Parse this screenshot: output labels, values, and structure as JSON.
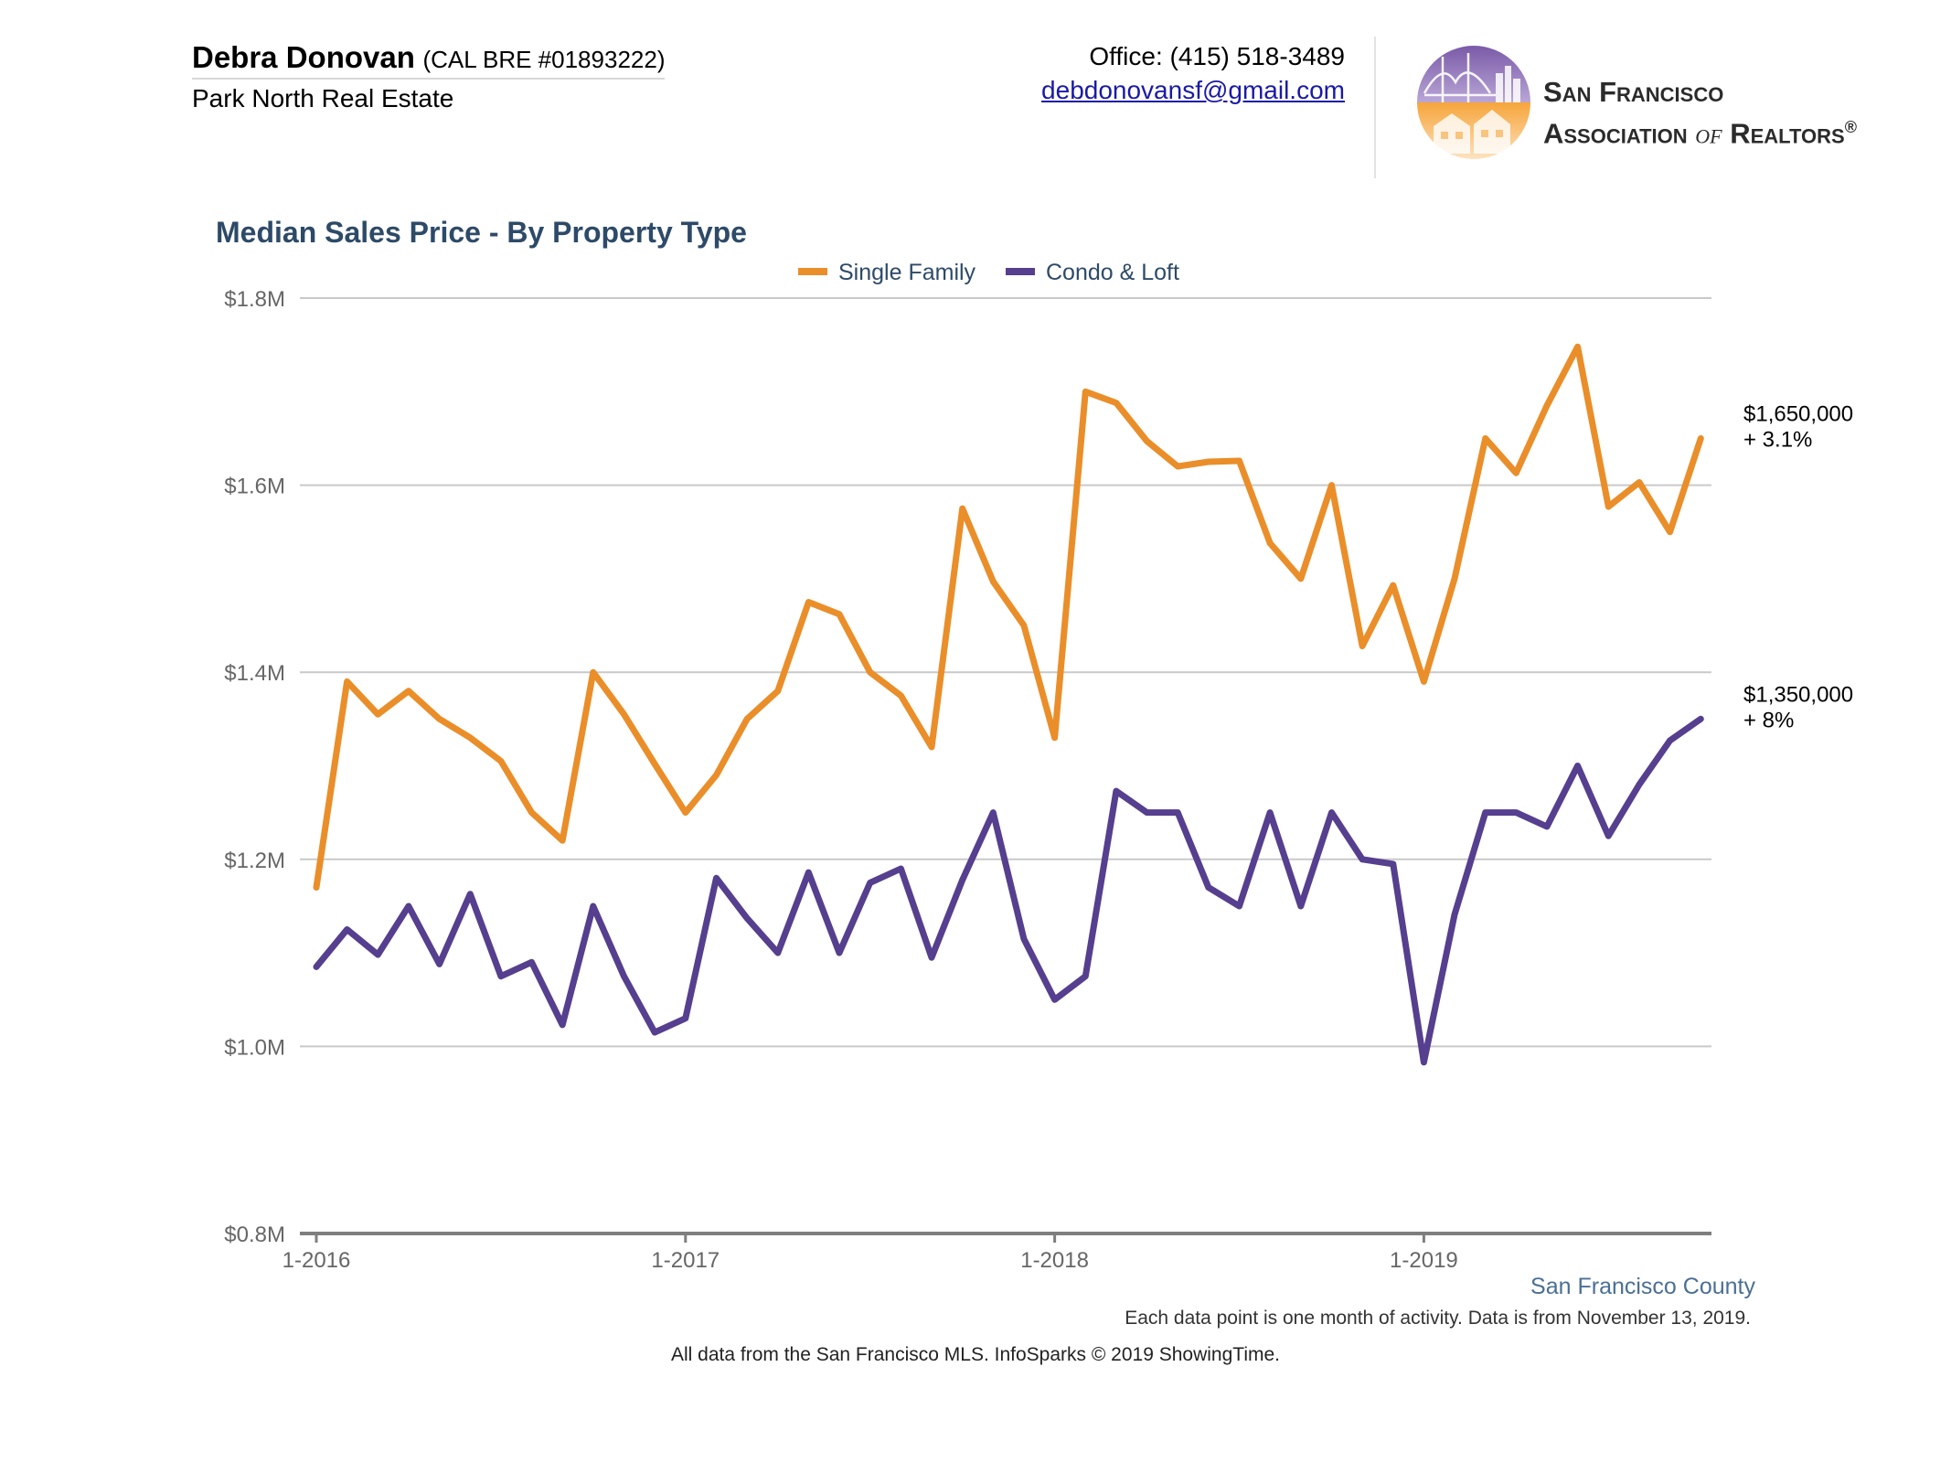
{
  "header": {
    "agent_name": "Debra Donovan",
    "agent_license": "(CAL BRE #01893222)",
    "brokerage": "Park North Real Estate",
    "office_phone": "Office: (415) 518-3489",
    "email": "debdonovansf@gmail.com",
    "association_line1": "San Francisco",
    "association_line2_pre": "Association ",
    "association_line2_of": "of",
    "association_line2_post": " Realtors",
    "association_mark": "®"
  },
  "colors": {
    "single_family": "#ea8e2a",
    "condo_loft": "#553f8e",
    "title": "#2d4a68",
    "grid": "#c9c9c9",
    "axis": "#7f7f7f",
    "tick_text": "#666666"
  },
  "chart_data": {
    "type": "line",
    "title": "Median Sales Price - By Property Type",
    "xlabel": "",
    "ylabel": "",
    "ylim": [
      800000,
      1800000
    ],
    "yticks": [
      800000,
      1000000,
      1200000,
      1400000,
      1600000,
      1800000
    ],
    "ytick_labels": [
      "$0.8M",
      "$1.0M",
      "$1.2M",
      "$1.4M",
      "$1.6M",
      "$1.8M"
    ],
    "x_start": "1-2016",
    "x_end": "10-2019",
    "xtick_labels": [
      "1-2016",
      "1-2017",
      "1-2018",
      "1-2019"
    ],
    "grid": true,
    "legend_position": "top-center",
    "series": [
      {
        "name": "Single Family",
        "values": [
          1170000,
          1390000,
          1355000,
          1380000,
          1350000,
          1330000,
          1305000,
          1250000,
          1220000,
          1400000,
          1355000,
          1302000,
          1250000,
          1290000,
          1350000,
          1380000,
          1475000,
          1462000,
          1400000,
          1375000,
          1320000,
          1575000,
          1497000,
          1450000,
          1330000,
          1700000,
          1688000,
          1647000,
          1620000,
          1625000,
          1626000,
          1538000,
          1500000,
          1600000,
          1428000,
          1493000,
          1390000,
          1500000,
          1650000,
          1613000,
          1685000,
          1748000,
          1577000,
          1603000,
          1550000,
          1650000
        ],
        "end_label": "$1,650,000",
        "end_change": "+ 3.1%"
      },
      {
        "name": "Condo & Loft",
        "values": [
          1085000,
          1125000,
          1098000,
          1150000,
          1088000,
          1163000,
          1075000,
          1090000,
          1023000,
          1150000,
          1075000,
          1015000,
          1030000,
          1180000,
          1137000,
          1100000,
          1186000,
          1100000,
          1175000,
          1190000,
          1095000,
          1178000,
          1250000,
          1115000,
          1050000,
          1075000,
          1273000,
          1250000,
          1250000,
          1170000,
          1150000,
          1250000,
          1150000,
          1250000,
          1200000,
          1195000,
          983000,
          1141000,
          1250000,
          1250000,
          1235000,
          1300000,
          1225000,
          1280000,
          1327000,
          1350000
        ],
        "end_label": "$1,350,000",
        "end_change": "+ 8%"
      }
    ],
    "region": "San Francisco County",
    "footnote": "Each data point is one month of activity. Data is from November 13, 2019."
  },
  "footer": {
    "source": "All data from the San Francisco MLS. InfoSparks © 2019 ShowingTime."
  }
}
